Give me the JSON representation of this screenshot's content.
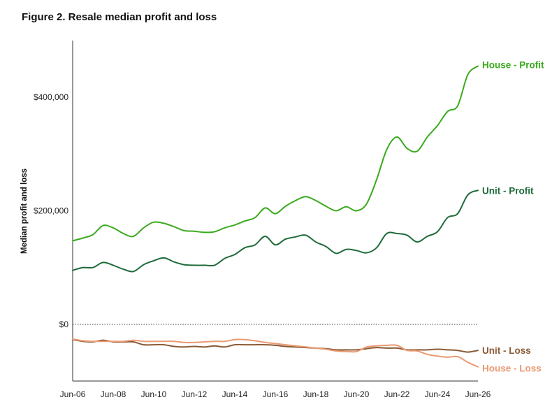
{
  "figure": {
    "title": "Figure 2. Resale median profit and loss"
  },
  "chart_data": {
    "type": "line",
    "title": "Figure 2. Resale median profit and loss",
    "xlabel": "",
    "ylabel": "Median profit and loss",
    "xlim": [
      2006,
      2026
    ],
    "ylim": [
      -100000,
      500000
    ],
    "x_ticks": [
      2006,
      2008,
      2010,
      2012,
      2014,
      2016,
      2018,
      2020,
      2022,
      2024,
      2026
    ],
    "x_tick_labels": [
      "Jun-06",
      "Jun-08",
      "Jun-10",
      "Jun-12",
      "Jun-14",
      "Jun-16",
      "Jun-18",
      "Jun-20",
      "Jun-22",
      "Jun-24",
      "Jun-26"
    ],
    "y_ticks": [
      0,
      200000,
      400000
    ],
    "y_tick_labels": [
      "$0",
      "$200,000",
      "$400,000"
    ],
    "zero_line": "dotted",
    "grid": false,
    "legend": "inline labels at line ends",
    "series": [
      {
        "name": "House - Profit",
        "color": "#3aaa1e",
        "points": [
          [
            2006.0,
            147000
          ],
          [
            2006.5,
            152000
          ],
          [
            2007.0,
            158000
          ],
          [
            2007.5,
            174000
          ],
          [
            2008.0,
            170000
          ],
          [
            2008.5,
            160000
          ],
          [
            2009.0,
            155000
          ],
          [
            2009.5,
            170000
          ],
          [
            2010.0,
            180000
          ],
          [
            2010.5,
            178000
          ],
          [
            2011.0,
            172000
          ],
          [
            2011.5,
            165000
          ],
          [
            2012.0,
            164000
          ],
          [
            2012.5,
            162000
          ],
          [
            2013.0,
            163000
          ],
          [
            2013.5,
            170000
          ],
          [
            2014.0,
            175000
          ],
          [
            2014.5,
            182000
          ],
          [
            2015.0,
            188000
          ],
          [
            2015.5,
            205000
          ],
          [
            2016.0,
            195000
          ],
          [
            2016.5,
            208000
          ],
          [
            2017.0,
            218000
          ],
          [
            2017.5,
            225000
          ],
          [
            2018.0,
            218000
          ],
          [
            2018.5,
            208000
          ],
          [
            2019.0,
            200000
          ],
          [
            2019.5,
            207000
          ],
          [
            2020.0,
            200000
          ],
          [
            2020.5,
            212000
          ],
          [
            2021.0,
            255000
          ],
          [
            2021.5,
            308000
          ],
          [
            2022.0,
            330000
          ],
          [
            2022.5,
            310000
          ],
          [
            2023.0,
            305000
          ],
          [
            2023.5,
            330000
          ],
          [
            2024.0,
            350000
          ],
          [
            2024.5,
            375000
          ],
          [
            2025.0,
            385000
          ],
          [
            2025.5,
            440000
          ],
          [
            2026.0,
            455000
          ]
        ]
      },
      {
        "name": "Unit - Profit",
        "color": "#1f6b3b",
        "points": [
          [
            2006.0,
            95000
          ],
          [
            2006.5,
            100000
          ],
          [
            2007.0,
            100000
          ],
          [
            2007.5,
            109000
          ],
          [
            2008.0,
            104000
          ],
          [
            2008.5,
            97000
          ],
          [
            2009.0,
            93000
          ],
          [
            2009.5,
            105000
          ],
          [
            2010.0,
            112000
          ],
          [
            2010.5,
            117000
          ],
          [
            2011.0,
            110000
          ],
          [
            2011.5,
            105000
          ],
          [
            2012.0,
            104000
          ],
          [
            2012.5,
            104000
          ],
          [
            2013.0,
            104000
          ],
          [
            2013.5,
            116000
          ],
          [
            2014.0,
            123000
          ],
          [
            2014.5,
            135000
          ],
          [
            2015.0,
            140000
          ],
          [
            2015.5,
            155000
          ],
          [
            2016.0,
            140000
          ],
          [
            2016.5,
            150000
          ],
          [
            2017.0,
            154000
          ],
          [
            2017.5,
            157000
          ],
          [
            2018.0,
            145000
          ],
          [
            2018.5,
            137000
          ],
          [
            2019.0,
            125000
          ],
          [
            2019.5,
            132000
          ],
          [
            2020.0,
            130000
          ],
          [
            2020.5,
            126000
          ],
          [
            2021.0,
            135000
          ],
          [
            2021.5,
            160000
          ],
          [
            2022.0,
            160000
          ],
          [
            2022.5,
            157000
          ],
          [
            2023.0,
            145000
          ],
          [
            2023.5,
            155000
          ],
          [
            2024.0,
            163000
          ],
          [
            2024.5,
            188000
          ],
          [
            2025.0,
            195000
          ],
          [
            2025.5,
            228000
          ],
          [
            2026.0,
            236000
          ]
        ]
      },
      {
        "name": "Unit - Loss",
        "color": "#8a5a34",
        "points": [
          [
            2006.0,
            -27000
          ],
          [
            2006.5,
            -30000
          ],
          [
            2007.0,
            -31000
          ],
          [
            2007.5,
            -28000
          ],
          [
            2008.0,
            -31000
          ],
          [
            2008.5,
            -31000
          ],
          [
            2009.0,
            -31000
          ],
          [
            2009.5,
            -36000
          ],
          [
            2010.0,
            -36000
          ],
          [
            2010.5,
            -36000
          ],
          [
            2011.0,
            -39000
          ],
          [
            2011.5,
            -40000
          ],
          [
            2012.0,
            -39000
          ],
          [
            2012.5,
            -40000
          ],
          [
            2013.0,
            -38000
          ],
          [
            2013.5,
            -40000
          ],
          [
            2014.0,
            -36000
          ],
          [
            2014.5,
            -36000
          ],
          [
            2015.0,
            -36000
          ],
          [
            2015.5,
            -36000
          ],
          [
            2016.0,
            -37000
          ],
          [
            2016.5,
            -39000
          ],
          [
            2017.0,
            -40000
          ],
          [
            2017.5,
            -41000
          ],
          [
            2018.0,
            -42000
          ],
          [
            2018.5,
            -43000
          ],
          [
            2019.0,
            -45000
          ],
          [
            2019.5,
            -45000
          ],
          [
            2020.0,
            -45000
          ],
          [
            2020.5,
            -43000
          ],
          [
            2021.0,
            -41000
          ],
          [
            2021.5,
            -42000
          ],
          [
            2022.0,
            -42000
          ],
          [
            2022.5,
            -45000
          ],
          [
            2023.0,
            -45000
          ],
          [
            2023.5,
            -45000
          ],
          [
            2024.0,
            -44000
          ],
          [
            2024.5,
            -45000
          ],
          [
            2025.0,
            -46000
          ],
          [
            2025.5,
            -49000
          ],
          [
            2026.0,
            -46000
          ]
        ]
      },
      {
        "name": "House - Loss",
        "color": "#eb9a72",
        "points": [
          [
            2006.0,
            -26000
          ],
          [
            2006.5,
            -29000
          ],
          [
            2007.0,
            -30000
          ],
          [
            2007.5,
            -30000
          ],
          [
            2008.0,
            -30000
          ],
          [
            2008.5,
            -30000
          ],
          [
            2009.0,
            -28000
          ],
          [
            2009.5,
            -30000
          ],
          [
            2010.0,
            -30000
          ],
          [
            2010.5,
            -30000
          ],
          [
            2011.0,
            -30000
          ],
          [
            2011.5,
            -32000
          ],
          [
            2012.0,
            -32000
          ],
          [
            2012.5,
            -31000
          ],
          [
            2013.0,
            -30000
          ],
          [
            2013.5,
            -30000
          ],
          [
            2014.0,
            -27000
          ],
          [
            2014.5,
            -27000
          ],
          [
            2015.0,
            -29000
          ],
          [
            2015.5,
            -32000
          ],
          [
            2016.0,
            -34000
          ],
          [
            2016.5,
            -36000
          ],
          [
            2017.0,
            -38000
          ],
          [
            2017.5,
            -40000
          ],
          [
            2018.0,
            -42000
          ],
          [
            2018.5,
            -44000
          ],
          [
            2019.0,
            -47000
          ],
          [
            2019.5,
            -48000
          ],
          [
            2020.0,
            -48000
          ],
          [
            2020.5,
            -40000
          ],
          [
            2021.0,
            -38000
          ],
          [
            2021.5,
            -37000
          ],
          [
            2022.0,
            -37000
          ],
          [
            2022.5,
            -46000
          ],
          [
            2023.0,
            -47000
          ],
          [
            2023.5,
            -53000
          ],
          [
            2024.0,
            -56000
          ],
          [
            2024.5,
            -58000
          ],
          [
            2025.0,
            -57000
          ],
          [
            2025.5,
            -67000
          ],
          [
            2026.0,
            -75000
          ]
        ]
      }
    ]
  }
}
